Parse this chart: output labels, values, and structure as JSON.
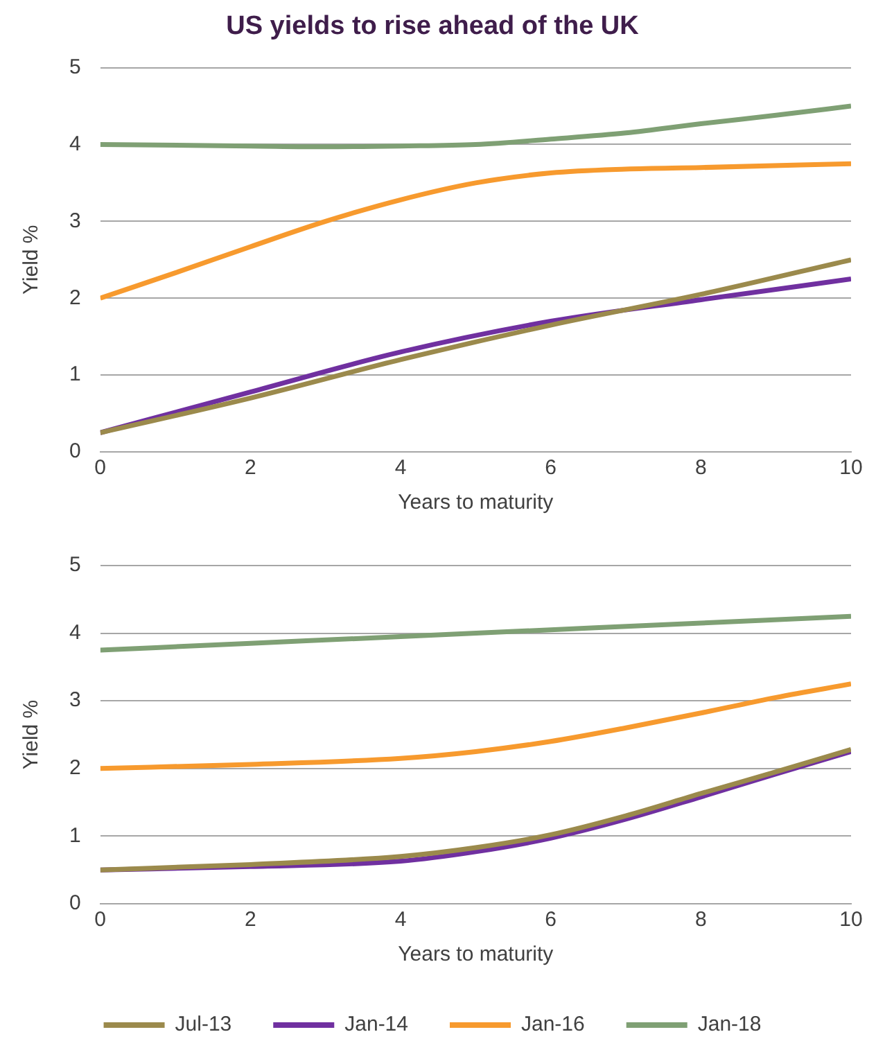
{
  "chart_data": [
    {
      "type": "line",
      "title": "US yields to rise ahead of the UK",
      "xlabel": "Years to maturity",
      "ylabel": "Yield %",
      "xlim": [
        0,
        10
      ],
      "xticks": [
        0,
        2,
        4,
        6,
        8,
        10
      ],
      "ylim": [
        0,
        5
      ],
      "yticks": [
        0,
        1,
        2,
        3,
        4,
        5
      ],
      "grid": "y",
      "legend": false,
      "marker": "none",
      "line_style": "solid",
      "series": [
        {
          "color": "#9b8a4c",
          "x": [
            0,
            2,
            4,
            6,
            8,
            10
          ],
          "values": [
            0.25,
            0.7,
            1.2,
            1.65,
            2.05,
            2.5
          ]
        },
        {
          "color": "#7030a0",
          "x": [
            0,
            2,
            4,
            6,
            8,
            10
          ],
          "values": [
            0.25,
            0.78,
            1.3,
            1.7,
            1.98,
            2.25
          ]
        },
        {
          "color": "#f79a2e",
          "x": [
            0,
            1,
            2,
            3,
            4,
            5,
            6,
            7,
            8,
            10
          ],
          "values": [
            2.0,
            2.33,
            2.67,
            3.0,
            3.28,
            3.5,
            3.63,
            3.68,
            3.7,
            3.75
          ]
        },
        {
          "color": "#7fa074",
          "x": [
            0,
            2,
            3,
            4,
            5,
            6,
            7,
            8,
            9,
            10
          ],
          "values": [
            4.0,
            3.98,
            3.97,
            3.98,
            4.0,
            4.07,
            4.15,
            4.27,
            4.38,
            4.5
          ]
        }
      ]
    },
    {
      "type": "line",
      "xlabel": "Years to maturity",
      "ylabel": "Yield %",
      "xlim": [
        0,
        10
      ],
      "xticks": [
        0,
        2,
        4,
        6,
        8,
        10
      ],
      "ylim": [
        0,
        5
      ],
      "yticks": [
        0,
        1,
        2,
        3,
        4,
        5
      ],
      "grid": "y",
      "legend": "bottom",
      "marker": "none",
      "line_style": "solid",
      "series": [
        {
          "name": "Jul-13",
          "color": "#9b8a4c",
          "x": [
            0,
            2,
            4,
            5,
            6,
            7,
            8,
            9,
            10
          ],
          "values": [
            0.5,
            0.58,
            0.7,
            0.83,
            1.02,
            1.3,
            1.63,
            1.95,
            2.28
          ]
        },
        {
          "name": "Jan-14",
          "color": "#7030a0",
          "x": [
            0,
            2,
            4,
            5,
            6,
            7,
            8,
            9,
            10
          ],
          "values": [
            0.5,
            0.55,
            0.63,
            0.77,
            0.97,
            1.25,
            1.58,
            1.92,
            2.25
          ]
        },
        {
          "name": "Jan-16",
          "color": "#f79a2e",
          "x": [
            0,
            2,
            4,
            5,
            6,
            7,
            8,
            9,
            10
          ],
          "values": [
            2.0,
            2.06,
            2.15,
            2.25,
            2.4,
            2.6,
            2.82,
            3.05,
            3.25
          ]
        },
        {
          "name": "Jan-18",
          "color": "#7fa074",
          "x": [
            0,
            2,
            4,
            6,
            8,
            10
          ],
          "values": [
            3.75,
            3.85,
            3.95,
            4.05,
            4.15,
            4.25
          ]
        }
      ]
    }
  ]
}
